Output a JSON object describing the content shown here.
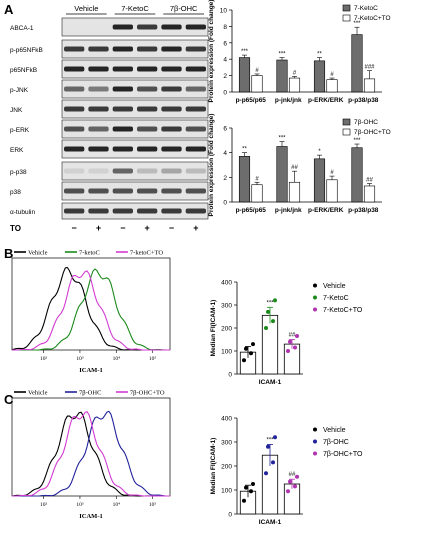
{
  "panel_letters": [
    "A",
    "B",
    "C"
  ],
  "blot": {
    "group_headers": [
      "Vehicle",
      "7-KetoC",
      "7β-OHC"
    ],
    "rows": [
      "ABCA-1",
      "p-p65NFkB",
      "p65NFkB",
      "p-JNK",
      "JNK",
      "p-ERK",
      "ERK",
      "p-p38",
      "p38",
      "α-tubulin"
    ],
    "treatment_label": "TO",
    "treatment_signs": [
      "−",
      "+",
      "−",
      "+",
      "−",
      "+"
    ]
  },
  "chart_data": [
    {
      "type": "bar",
      "ylabel": "Protein expression (Fold change)",
      "categories": [
        "p-p65/p65",
        "p-jnk/jnk",
        "p-ERK/ERK",
        "p-p38/p38"
      ],
      "ylim": [
        0,
        10
      ],
      "yticks": [
        0,
        2,
        4,
        6,
        8,
        10
      ],
      "series": [
        {
          "name": "7-KetoC",
          "color": "#6d6d6d",
          "values": [
            4.2,
            3.9,
            3.8,
            7.0
          ],
          "errors": [
            0.3,
            0.3,
            0.4,
            0.9
          ],
          "sig": [
            "***",
            "***",
            "**",
            "***"
          ]
        },
        {
          "name": "7-KetoC+TO",
          "color": "#ffffff",
          "values": [
            2.0,
            1.7,
            1.5,
            1.6
          ],
          "errors": [
            0.2,
            0.2,
            0.2,
            1.0
          ],
          "sig": [
            "#",
            "#",
            "#",
            "###"
          ]
        }
      ]
    },
    {
      "type": "bar",
      "ylabel": "Protein expression (Fold change)",
      "categories": [
        "p-p65/p65",
        "p-jnk/jnk",
        "p-ERK/ERK",
        "p-p38/p38"
      ],
      "ylim": [
        0,
        6
      ],
      "yticks": [
        0,
        2,
        4,
        6
      ],
      "series": [
        {
          "name": "7β-OHC",
          "color": "#6d6d6d",
          "values": [
            3.7,
            4.5,
            3.5,
            4.4
          ],
          "errors": [
            0.3,
            0.4,
            0.3,
            0.3
          ],
          "sig": [
            "**",
            "***",
            "*",
            "***"
          ]
        },
        {
          "name": "7β-OHC+TO",
          "color": "#ffffff",
          "values": [
            1.4,
            1.6,
            1.8,
            1.3
          ],
          "errors": [
            0.2,
            0.9,
            0.3,
            0.2
          ],
          "sig": [
            "#",
            "##",
            "#",
            "##"
          ]
        }
      ]
    },
    {
      "type": "histogram",
      "xlabel": "ICAM-1",
      "xticks": [
        "10²",
        "10³",
        "10⁴",
        "10⁵"
      ],
      "legend": [
        "Vehicle",
        "7-ketoC",
        "7-ketoC+TO"
      ],
      "colors": [
        "#000000",
        "#1a8a1a",
        "#d23bd2"
      ],
      "peaks": [
        0.36,
        0.55,
        0.44
      ]
    },
    {
      "type": "scatter",
      "xlabel": "ICAM-1",
      "ylabel": "Median FI(ICAM-1)",
      "ylim": [
        0,
        400
      ],
      "yticks": [
        0,
        100,
        200,
        300,
        400
      ],
      "groups": [
        {
          "name": "Vehicle",
          "color": "#000000",
          "mean": 95,
          "sem": 25,
          "points": [
            60,
            90,
            110,
            130
          ],
          "sig": ""
        },
        {
          "name": "7-KetoC",
          "color": "#1a8a1a",
          "mean": 255,
          "sem": 35,
          "points": [
            200,
            230,
            270,
            320
          ],
          "sig": "***"
        },
        {
          "name": "7-KetoC+TO",
          "color": "#b033b0",
          "mean": 130,
          "sem": 20,
          "points": [
            100,
            115,
            140,
            165
          ],
          "sig": "##"
        }
      ]
    },
    {
      "type": "histogram",
      "xlabel": "ICAM-1",
      "xticks": [
        "10²",
        "10³",
        "10⁴",
        "10⁵"
      ],
      "legend": [
        "Vehicle",
        "7β-OHC",
        "7β-OHC+TO"
      ],
      "colors": [
        "#000000",
        "#22229a",
        "#d23bd2"
      ],
      "peaks": [
        0.4,
        0.58,
        0.44
      ]
    },
    {
      "type": "scatter",
      "xlabel": "ICAM-1",
      "ylabel": "Median FI(ICAM-1)",
      "ylim": [
        0,
        400
      ],
      "yticks": [
        0,
        100,
        200,
        300,
        400
      ],
      "groups": [
        {
          "name": "Vehicle",
          "color": "#000000",
          "mean": 95,
          "sem": 25,
          "points": [
            55,
            95,
            110,
            125
          ],
          "sig": ""
        },
        {
          "name": "7β-OHC",
          "color": "#22229a",
          "mean": 245,
          "sem": 45,
          "points": [
            170,
            215,
            280,
            320
          ],
          "sig": "***"
        },
        {
          "name": "7β-OHC+TO",
          "color": "#b033b0",
          "mean": 125,
          "sem": 20,
          "points": [
            95,
            115,
            135,
            155
          ],
          "sig": "##"
        }
      ]
    }
  ]
}
